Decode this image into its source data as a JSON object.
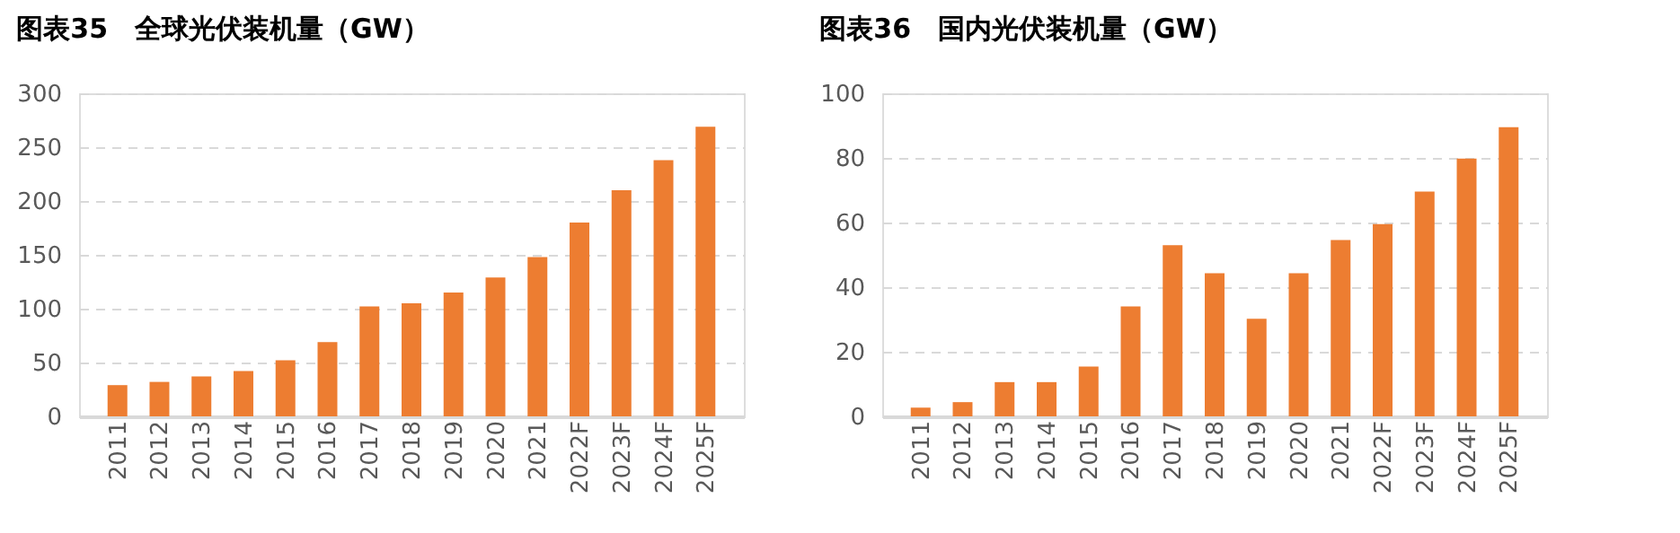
{
  "chart_data": [
    {
      "type": "bar",
      "title": "图表35　全球光伏装机量（GW）",
      "categories": [
        "2011",
        "2012",
        "2013",
        "2014",
        "2015",
        "2016",
        "2017",
        "2018",
        "2019",
        "2020",
        "2021",
        "2022F",
        "2023F",
        "2024F",
        "2025F"
      ],
      "series": [
        {
          "color": "#ed7d31",
          "values": [
            29,
            32,
            37,
            42,
            52,
            69,
            102,
            105,
            115,
            129,
            148,
            180,
            210,
            238,
            269
          ]
        }
      ],
      "ylim": [
        0,
        300
      ],
      "yticks": [
        0,
        50,
        100,
        150,
        200,
        250,
        300
      ],
      "grid": "y",
      "legend": false
    },
    {
      "type": "bar",
      "title": "图表36　国内光伏装机量（GW）",
      "categories": [
        "2011",
        "2012",
        "2013",
        "2014",
        "2015",
        "2016",
        "2017",
        "2018",
        "2019",
        "2020",
        "2021",
        "2022F",
        "2023F",
        "2024F",
        "2025F"
      ],
      "series": [
        {
          "color": "#ed7d31",
          "values": [
            2.7,
            4.4,
            10.6,
            10.6,
            15.4,
            34,
            53,
            44.3,
            30.2,
            44.3,
            54.6,
            59.5,
            69.6,
            79.8,
            89.5
          ]
        }
      ],
      "ylim": [
        0,
        100
      ],
      "yticks": [
        0,
        20,
        40,
        60,
        80,
        100
      ],
      "grid": "y",
      "legend": false
    }
  ]
}
